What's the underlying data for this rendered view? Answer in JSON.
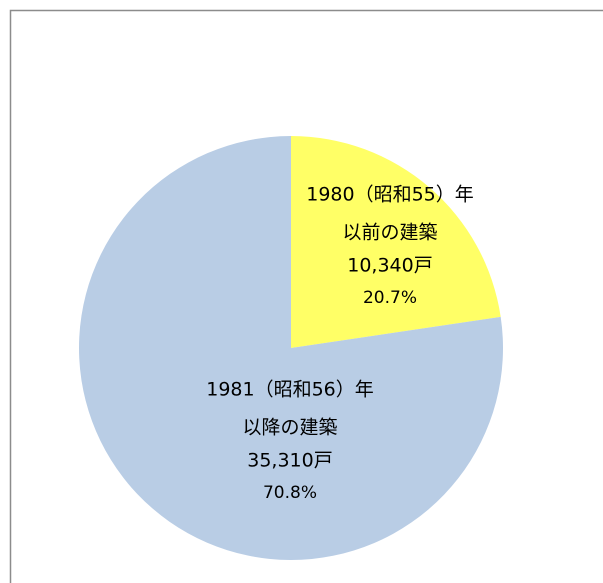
{
  "chart_data": {
    "type": "pie",
    "categories": [
      [
        "1980（昭和55）年",
        "以前の建築"
      ],
      [
        "1981（昭和56）年",
        "以降の建築"
      ]
    ],
    "values": [
      10340,
      35310
    ],
    "value_labels": [
      "10,340戸",
      "35,310戸"
    ],
    "percentages": [
      20.7,
      70.8
    ],
    "percentage_labels": [
      "20.7%",
      "70.8%"
    ],
    "colors": [
      "#ffff66",
      "#b9cde5"
    ]
  }
}
